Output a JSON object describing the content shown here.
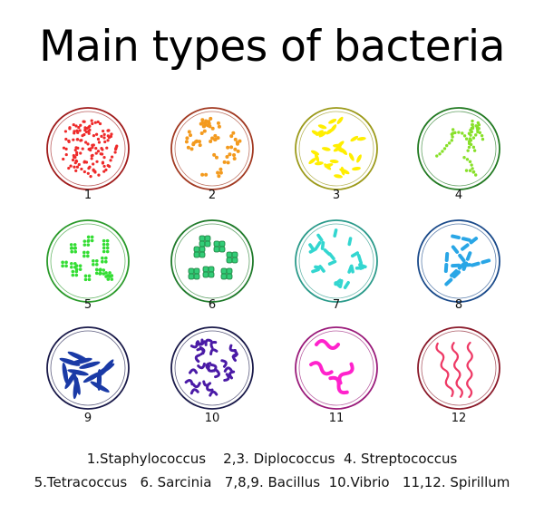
{
  "title": "Main types of bacteria",
  "dishes": [
    {
      "number": "1",
      "kind": "staphylococcus",
      "rim": "#a01c1c",
      "fill": "#ee2a2a"
    },
    {
      "number": "2",
      "kind": "diplococcus",
      "rim": "#a23a22",
      "fill": "#f39a1e"
    },
    {
      "number": "3",
      "kind": "diplococcus-oval",
      "rim": "#9c9a1a",
      "fill": "#ffee00"
    },
    {
      "number": "4",
      "kind": "streptococcus",
      "rim": "#227a22",
      "fill": "#88e02a"
    },
    {
      "number": "5",
      "kind": "tetracoccus",
      "rim": "#2a9a2a",
      "fill": "#33dd33"
    },
    {
      "number": "6",
      "kind": "sarcina",
      "rim": "#1f7a2a",
      "fill": "#33cc77"
    },
    {
      "number": "7",
      "kind": "bacillus",
      "rim": "#2a9a8a",
      "fill": "#33d6d0"
    },
    {
      "number": "8",
      "kind": "bacillus-chain",
      "rim": "#1a4a8a",
      "fill": "#29a6e6"
    },
    {
      "number": "9",
      "kind": "bacillus-spindle",
      "rim": "#1a1a4a",
      "fill": "#1a3aa6"
    },
    {
      "number": "10",
      "kind": "vibrio",
      "rim": "#1a1a4a",
      "fill": "#4a1aa6"
    },
    {
      "number": "11",
      "kind": "spirillum-thick",
      "rim": "#9a1a7a",
      "fill": "#ff22cc"
    },
    {
      "number": "12",
      "kind": "spirillum",
      "rim": "#8a1a2a",
      "fill": "#ee3a66"
    }
  ],
  "legend": {
    "line1": [
      "1.Staphylococcus",
      "2,3. Diplococcus",
      "4. Streptococcus"
    ],
    "line2": [
      "5.Tetracoccus",
      "6. Sarcinia",
      "7,8,9. Bacillus",
      "10.Vibrio",
      "11,12. Spirillum"
    ]
  }
}
